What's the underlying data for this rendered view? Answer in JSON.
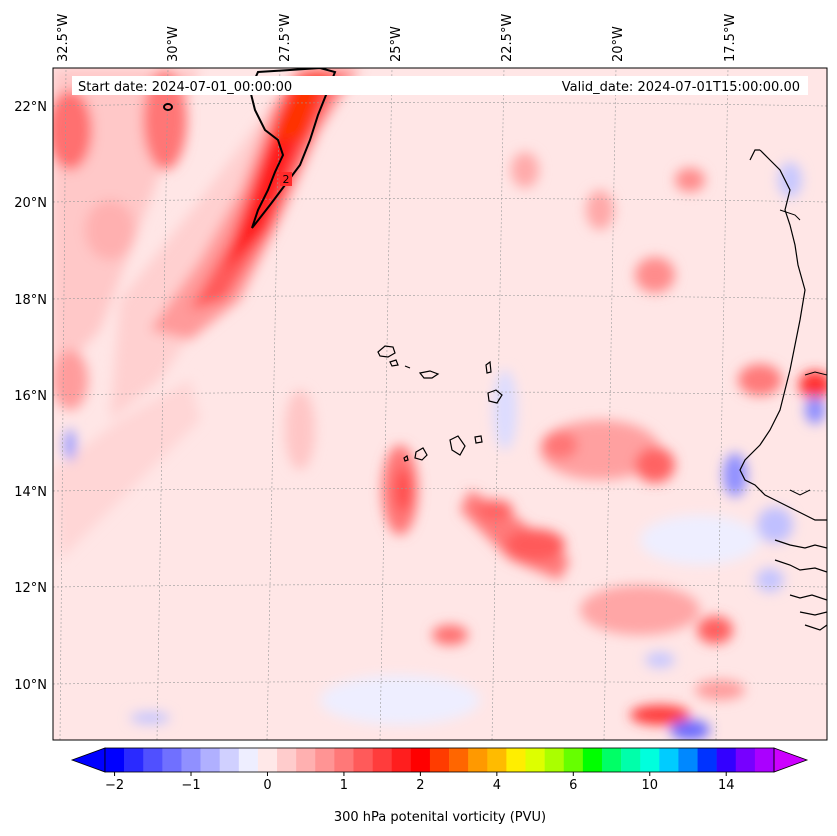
{
  "header": {
    "start_date": "Start date: 2024-07-01_00:00:00",
    "valid_date": "Valid_date: 2024-07-01T15:00:00.00"
  },
  "axes": {
    "longitude_labels": [
      "32.5°W",
      "30°W",
      "27.5°W",
      "25°W",
      "22.5°W",
      "20°W",
      "17.5°W"
    ],
    "latitude_labels": [
      "22°N",
      "20°N",
      "18°N",
      "16°N",
      "14°N",
      "12°N",
      "10°N"
    ]
  },
  "contour": {
    "label": "2"
  },
  "colorbar": {
    "label": "300 hPa potenital vorticity (PVU)",
    "tick_labels": [
      "−2",
      "−1",
      "0",
      "1",
      "2",
      "4",
      "6",
      "10",
      "14"
    ],
    "colors": [
      "#0000ff",
      "#2a2aff",
      "#5050ff",
      "#7070ff",
      "#9090ff",
      "#b0b0ff",
      "#d0d0ff",
      "#eeeeff",
      "#ffe8e8",
      "#ffcccc",
      "#ffb0b0",
      "#ff9494",
      "#ff7878",
      "#ff5a5a",
      "#ff3c3c",
      "#ff1e1e",
      "#ff0000",
      "#ff3c00",
      "#ff6600",
      "#ff9900",
      "#ffbb00",
      "#ffee00",
      "#ddff00",
      "#aaff00",
      "#66ff00",
      "#00ff00",
      "#00ff66",
      "#00ffaa",
      "#00ffdd",
      "#00ccff",
      "#0088ff",
      "#0033ff",
      "#3300ff",
      "#7700ff",
      "#aa00ff"
    ]
  },
  "map": {
    "ocean_fill": "#ffe4e4",
    "coast_color": "#000000"
  }
}
